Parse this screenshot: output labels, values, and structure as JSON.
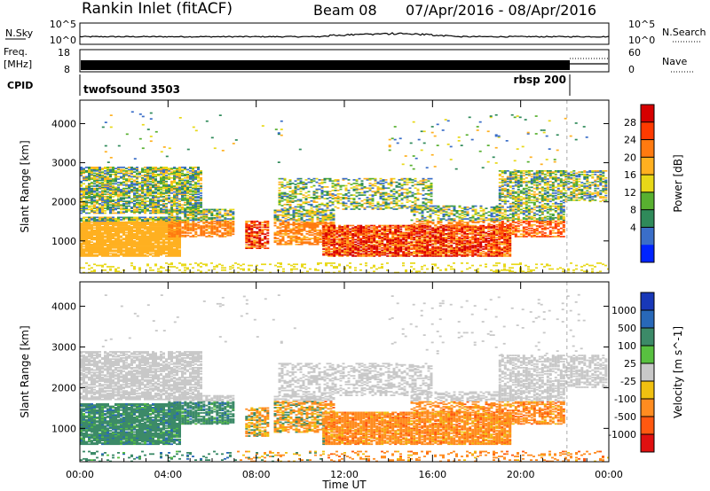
{
  "header": {
    "title": "Rankin Inlet (fitACF)",
    "beam": "Beam 08",
    "dates": "07/Apr/2016 - 08/Apr/2016"
  },
  "panels": {
    "nsky_label": "N.Sky",
    "nsky_ticks": [
      "10^5",
      "10^0"
    ],
    "nsearch_label": "N.Search",
    "nsearch_ticks": [
      "10^5",
      "10^0"
    ],
    "freq_label": "Freq.",
    "freq_unit": "[MHz]",
    "freq_ticks": [
      "18",
      "8"
    ],
    "nave_label": "Nave",
    "nave_ticks": [
      "60",
      "0"
    ],
    "cpid_label": "CPID",
    "cpid_1": "twofsound 3503",
    "cpid_2": "rbsp 200"
  },
  "chart_data": [
    {
      "type": "heatmap",
      "title": "",
      "xlabel": "Time UT",
      "ylabel": "Slant Range [km]",
      "x_ticks": [
        "00:00",
        "04:00",
        "08:00",
        "12:00",
        "16:00",
        "20:00",
        "00:00"
      ],
      "xlim_hours": [
        0,
        24
      ],
      "y_ticks": [
        1000,
        2000,
        3000,
        4000
      ],
      "ylim": [
        180,
        4600
      ],
      "colorbar": {
        "label": "Power [dB]",
        "ticks": [
          "28",
          "24",
          "20",
          "16",
          "12",
          "8",
          "4"
        ],
        "colors": [
          "#d60000",
          "#ff3a00",
          "#ff7a10",
          "#ffb020",
          "#e8d818",
          "#58b030",
          "#2f8a5a",
          "#3a6ec8",
          "#0024ff"
        ]
      }
    },
    {
      "type": "heatmap",
      "title": "",
      "xlabel": "Time UT",
      "ylabel": "Slant Range [km]",
      "x_ticks": [
        "00:00",
        "04:00",
        "08:00",
        "12:00",
        "16:00",
        "20:00",
        "00:00"
      ],
      "xlim_hours": [
        0,
        24
      ],
      "y_ticks": [
        1000,
        2000,
        3000,
        4000
      ],
      "ylim": [
        180,
        4600
      ],
      "colorbar": {
        "label": "Velocity [m s^-1]",
        "ticks": [
          "1000",
          "500",
          "100",
          "25",
          "-25",
          "-100",
          "-500",
          "-1000"
        ],
        "colors": [
          "#1838b8",
          "#2868b8",
          "#3c8a68",
          "#58c040",
          "#c8c8c8",
          "#f0c010",
          "#ff8c20",
          "#ff5810",
          "#e01010"
        ]
      }
    }
  ]
}
